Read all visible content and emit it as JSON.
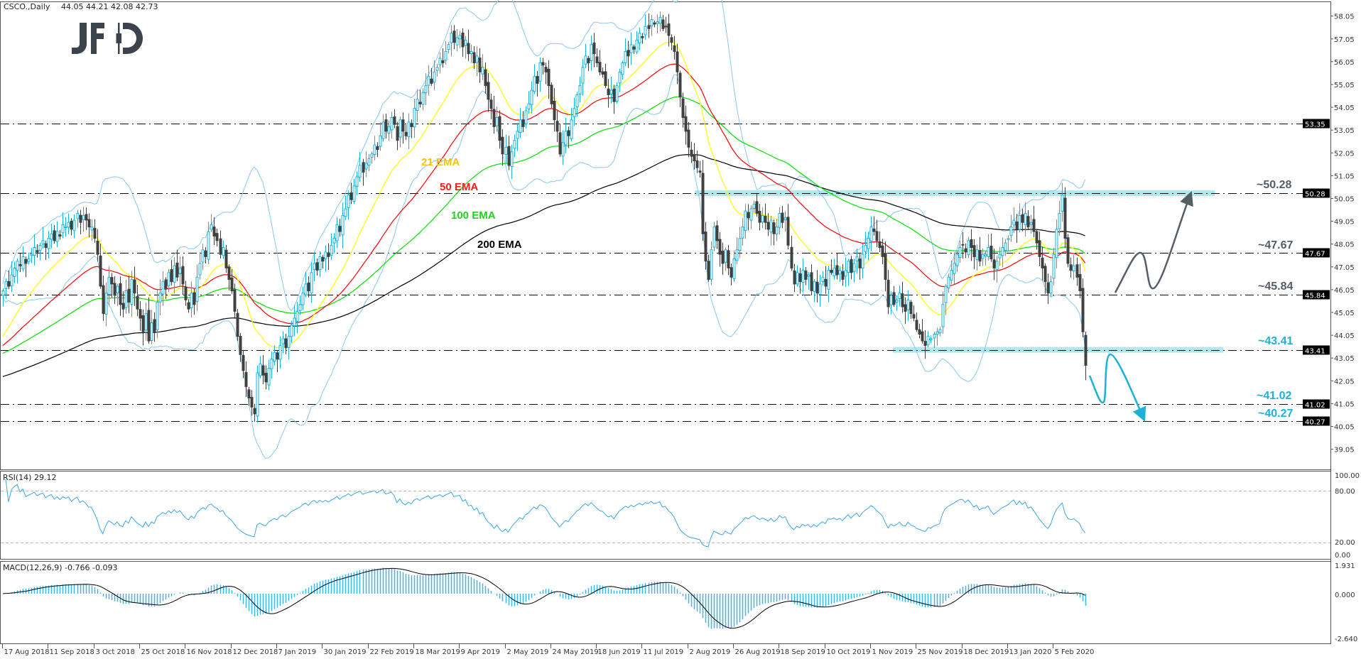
{
  "header": {
    "symbol": "CSCO.,Daily",
    "ohlc": "44.05 44.21 42.08 42.73"
  },
  "logo": "JFD",
  "colors": {
    "bull": "#1ab2d8",
    "bear": "#404040",
    "ema21": "#ffff00",
    "ema50": "#ff0000",
    "ema100": "#00e000",
    "ema200": "#000000",
    "bands": "#86c8f2",
    "zone": "#aee9ee",
    "rsi": "#3aa6e8",
    "macd_hist": "#3cb7e0",
    "level_up": "#555d66",
    "level_down": "#1ab2d8"
  },
  "ema_labels": {
    "ema21": "21 EMA",
    "ema50": "50 EMA",
    "ema100": "100 EMA",
    "ema200": "200 EMA"
  },
  "level_labels": {
    "l5028": "~50.28",
    "l4767": "~47.67",
    "l4584": "~45.84",
    "l4341": "~43.41",
    "l4102": "~41.02",
    "l4027": "~40.27"
  },
  "rsi_panel": {
    "label": "RSI(14) 29.12",
    "ticks": [
      "100.00",
      "80.00",
      "20.00",
      "0.00"
    ]
  },
  "macd_panel": {
    "label": "MACD(12,26,9) -0.766 -0.093",
    "ticks": [
      "1.931",
      "0.000",
      "-2.640"
    ]
  },
  "chart_data": {
    "type": "candlestick",
    "title": "CSCO.,Daily",
    "last_bar": {
      "open": 44.05,
      "high": 44.21,
      "low": 42.08,
      "close": 42.73
    },
    "x_tick_labels": [
      "17 Aug 2018",
      "11 Sep 2018",
      "3 Oct 2018",
      "25 Oct 2018",
      "16 Nov 2018",
      "12 Dec 2018",
      "7 Jan 2019",
      "30 Jan 2019",
      "22 Feb 2019",
      "18 Mar 2019",
      "9 Apr 2019",
      "2 May 2019",
      "24 May 2019",
      "18 Jun 2019",
      "11 Jul 2019",
      "2 Aug 2019",
      "26 Aug 2019",
      "18 Sep 2019",
      "10 Oct 2019",
      "1 Nov 2019",
      "25 Nov 2019",
      "18 Dec 2019",
      "13 Jan 2020",
      "5 Feb 2020"
    ],
    "y_tick_labels": [
      "58.05",
      "57.05",
      "56.05",
      "55.05",
      "54.05",
      "53.05",
      "52.05",
      "51.05",
      "50.05",
      "49.05",
      "48.05",
      "47.05",
      "46.05",
      "45.05",
      "44.05",
      "43.05",
      "42.05",
      "41.05",
      "40.05",
      "39.05"
    ],
    "ylim": [
      38.4,
      58.7
    ],
    "horizontal_levels": [
      53.35,
      50.28,
      47.67,
      45.84,
      43.41,
      41.02,
      40.27
    ],
    "level_tags": [
      "53.35",
      "50.28",
      "47.67",
      "45.84",
      "43.41",
      "41.02",
      "40.27"
    ],
    "zones": [
      50.28,
      43.41
    ],
    "indicators": [
      "EMA 21",
      "EMA 50",
      "EMA 100",
      "EMA 200",
      "Bollinger Bands",
      "RSI(14)",
      "MACD(12,26,9)"
    ],
    "closes": [
      46.0,
      46.4,
      46.2,
      46.7,
      47.0,
      47.3,
      47.1,
      47.5,
      47.2,
      47.4,
      47.6,
      47.9,
      47.7,
      48.0,
      48.2,
      47.9,
      48.3,
      48.5,
      48.2,
      48.6,
      48.4,
      48.9,
      48.8,
      49.0,
      48.7,
      49.1,
      49.4,
      49.0,
      49.3,
      49.1,
      48.8,
      48.8,
      48.3,
      47.6,
      46.2,
      45.0,
      45.9,
      46.6,
      46.3,
      45.8,
      46.2,
      45.4,
      45.2,
      46.0,
      45.5,
      46.5,
      45.9,
      45.2,
      44.8,
      44.2,
      45.0,
      43.8,
      44.6,
      44.2,
      45.5,
      45.9,
      46.4,
      46.1,
      46.8,
      46.4,
      47.1,
      46.6,
      47.0,
      46.3,
      45.6,
      45.2,
      45.9,
      45.4,
      46.6,
      47.2,
      47.8,
      47.5,
      48.6,
      48.9,
      48.4,
      48.2,
      47.6,
      47.9,
      47.0,
      46.5,
      46.0,
      45.1,
      44.0,
      43.2,
      42.5,
      41.8,
      41.3,
      40.9,
      40.6,
      42.4,
      42.8,
      42.3,
      42.0,
      42.6,
      43.0,
      43.3,
      43.0,
      43.6,
      43.9,
      43.5,
      44.0,
      44.5,
      44.8,
      45.1,
      45.4,
      45.9,
      46.3,
      46.0,
      46.8,
      47.2,
      46.9,
      47.5,
      47.3,
      47.7,
      47.5,
      48.0,
      48.3,
      48.9,
      48.6,
      49.3,
      49.6,
      50.2,
      50.0,
      50.6,
      51.0,
      51.5,
      51.2,
      51.6,
      51.8,
      52.0,
      52.4,
      52.2,
      52.8,
      53.4,
      53.0,
      53.2,
      53.6,
      53.3,
      52.6,
      53.5,
      53.0,
      52.8,
      53.4,
      53.2,
      54.0,
      54.4,
      54.2,
      54.7,
      55.0,
      55.4,
      55.1,
      55.6,
      55.8,
      56.2,
      56.0,
      56.5,
      56.8,
      57.3,
      56.9,
      57.1,
      57.2,
      56.7,
      57.0,
      56.4,
      56.5,
      56.0,
      56.3,
      55.6,
      55.8,
      55.0,
      54.4,
      54.0,
      53.2,
      53.6,
      52.6,
      52.0,
      52.3,
      51.5,
      52.1,
      52.6,
      53.0,
      53.5,
      53.2,
      53.9,
      54.2,
      54.8,
      55.4,
      55.1,
      56.0,
      55.9,
      55.6,
      55.0,
      54.2,
      53.5,
      53.0,
      52.0,
      52.5,
      53.0,
      52.8,
      53.5,
      54.0,
      54.6,
      55.0,
      55.8,
      56.3,
      56.0,
      56.8,
      56.4,
      56.0,
      55.6,
      55.5,
      55.0,
      54.6,
      54.8,
      54.3,
      55.0,
      55.6,
      56.0,
      56.5,
      56.3,
      56.8,
      56.6,
      57.0,
      57.3,
      57.1,
      57.6,
      57.5,
      57.9,
      57.7,
      57.8,
      58.0,
      57.5,
      57.6,
      57.2,
      56.9,
      56.5,
      55.6,
      54.5,
      53.6,
      53.0,
      52.3,
      51.9,
      51.7,
      51.4,
      51.2,
      48.5,
      47.3,
      46.5,
      47.8,
      48.8,
      48.2,
      47.6,
      47.2,
      47.8,
      47.0,
      46.6,
      47.4,
      47.8,
      48.3,
      48.8,
      49.5,
      49.2,
      49.6,
      49.8,
      49.4,
      49.0,
      49.3,
      49.0,
      48.7,
      49.1,
      48.5,
      48.8,
      49.4,
      49.0,
      49.2,
      48.0,
      47.0,
      46.3,
      46.8,
      46.4,
      46.9,
      46.5,
      46.7,
      46.0,
      46.4,
      45.9,
      46.3,
      46.6,
      46.2,
      46.9,
      46.8,
      47.0,
      46.7,
      46.9,
      46.5,
      46.9,
      47.3,
      46.8,
      47.2,
      47.5,
      47.0,
      47.6,
      48.0,
      48.3,
      48.8,
      48.6,
      48.2,
      47.9,
      47.5,
      46.5,
      45.3,
      45.8,
      45.4,
      45.6,
      45.9,
      45.3,
      45.1,
      45.6,
      45.0,
      44.8,
      44.3,
      44.1,
      43.8,
      43.6,
      44.0,
      43.9,
      44.1,
      44.2,
      44.3,
      45.4,
      46.2,
      46.6,
      46.9,
      47.2,
      47.6,
      47.9,
      48.0,
      47.7,
      48.2,
      47.9,
      47.5,
      47.8,
      47.3,
      47.6,
      47.6,
      47.9,
      47.4,
      47.0,
      47.3,
      47.6,
      47.9,
      48.1,
      48.3,
      48.8,
      49.1,
      48.7,
      49.3,
      49.0,
      49.4,
      48.8,
      49.0,
      48.6,
      48.1,
      47.5,
      47.0,
      46.4,
      45.9,
      46.4,
      47.6,
      48.7,
      49.4,
      50.2,
      48.3,
      47.2,
      46.9,
      47.1,
      46.6,
      46.0,
      44.2,
      42.73
    ]
  }
}
